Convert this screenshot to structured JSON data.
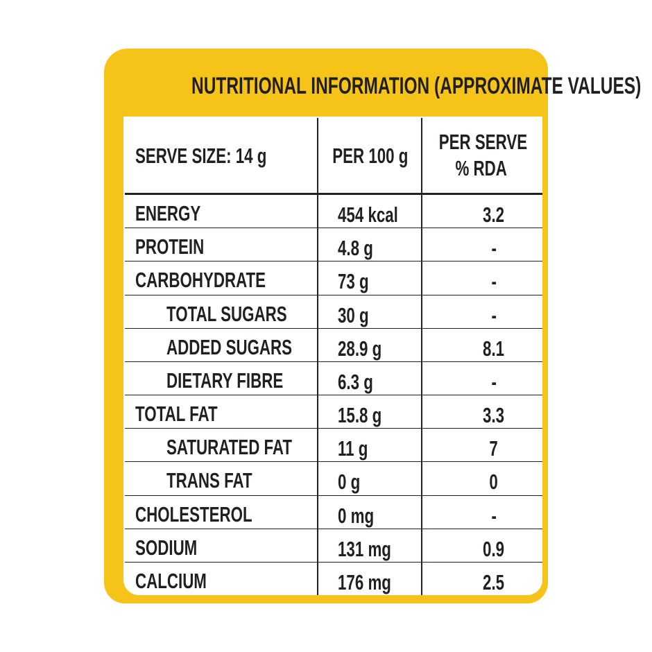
{
  "header": {
    "title": "NUTRITIONAL INFORMATION (APPROXIMATE VALUES)"
  },
  "table": {
    "columns": [
      "SERVE SIZE: 14 g",
      "PER 100 g",
      [
        "PER SERVE",
        "% RDA"
      ]
    ],
    "rows": [
      {
        "label": "ENERGY",
        "indent": false,
        "per_100g": "454 kcal",
        "per_serve_rda": "3.2"
      },
      {
        "label": "PROTEIN",
        "indent": false,
        "per_100g": "4.8 g",
        "per_serve_rda": "-"
      },
      {
        "label": "CARBOHYDRATE",
        "indent": false,
        "per_100g": "73 g",
        "per_serve_rda": "-"
      },
      {
        "label": "TOTAL SUGARS",
        "indent": true,
        "per_100g": "30 g",
        "per_serve_rda": "-"
      },
      {
        "label": "ADDED SUGARS",
        "indent": true,
        "per_100g": "28.9 g",
        "per_serve_rda": "8.1"
      },
      {
        "label": "DIETARY FIBRE",
        "indent": true,
        "per_100g": "6.3 g",
        "per_serve_rda": "-"
      },
      {
        "label": "TOTAL FAT",
        "indent": false,
        "per_100g": "15.8 g",
        "per_serve_rda": "3.3"
      },
      {
        "label": "SATURATED FAT",
        "indent": true,
        "per_100g": "11 g",
        "per_serve_rda": "7"
      },
      {
        "label": "TRANS FAT",
        "indent": true,
        "per_100g": "0 g",
        "per_serve_rda": "0"
      },
      {
        "label": "CHOLESTEROL",
        "indent": false,
        "per_100g": "0 mg",
        "per_serve_rda": "-"
      },
      {
        "label": "SODIUM",
        "indent": false,
        "per_100g": "131 mg",
        "per_serve_rda": "0.9"
      },
      {
        "label": "CALCIUM",
        "indent": false,
        "per_100g": "176 mg",
        "per_serve_rda": "2.5"
      }
    ]
  }
}
